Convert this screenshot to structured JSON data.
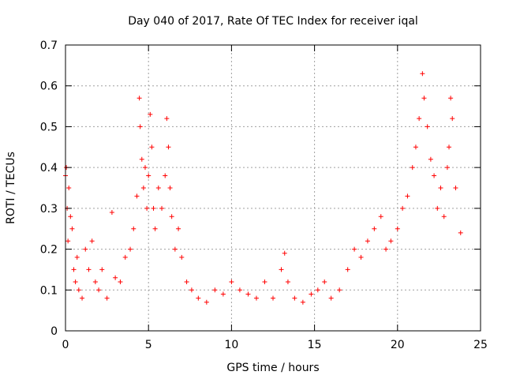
{
  "chart_data": {
    "type": "scatter",
    "title": "Day 040 of 2017, Rate Of TEC Index for receiver iqal",
    "xlabel": "GPS time / hours",
    "ylabel": "ROTI / TECUs",
    "xlim": [
      0,
      25
    ],
    "ylim": [
      0,
      0.7
    ],
    "xticks": [
      0,
      5,
      10,
      15,
      20,
      25
    ],
    "yticks": [
      0,
      0.1,
      0.2,
      0.3,
      0.4,
      0.5,
      0.6,
      0.7
    ],
    "xtick_labels": [
      "0",
      "5",
      "10",
      "15",
      "20",
      "25"
    ],
    "ytick_labels": [
      "0",
      "0.1",
      "0.2",
      "0.3",
      "0.4",
      "0.5",
      "0.6",
      "0.7"
    ],
    "grid": true,
    "marker": "+",
    "marker_color": "#ff0000",
    "series": [
      {
        "name": "ROTI",
        "x": [
          0.0,
          0.05,
          0.1,
          0.15,
          0.2,
          0.3,
          0.4,
          0.5,
          0.6,
          0.7,
          0.8,
          1.0,
          1.2,
          1.4,
          1.6,
          1.8,
          2.0,
          2.2,
          2.5,
          2.8,
          3.0,
          3.3,
          3.6,
          3.9,
          4.1,
          4.3,
          4.45,
          4.5,
          4.6,
          4.7,
          4.8,
          4.9,
          5.0,
          5.1,
          5.2,
          5.3,
          5.4,
          5.6,
          5.8,
          6.0,
          6.1,
          6.2,
          6.3,
          6.4,
          6.6,
          6.8,
          7.0,
          7.3,
          7.6,
          8.0,
          8.5,
          9.0,
          9.5,
          10.0,
          10.5,
          11.0,
          11.5,
          12.0,
          12.5,
          13.0,
          13.2,
          13.4,
          13.8,
          14.3,
          14.8,
          15.2,
          15.6,
          16.0,
          16.5,
          17.0,
          17.4,
          17.8,
          18.2,
          18.6,
          19.0,
          19.3,
          19.6,
          20.0,
          20.3,
          20.6,
          20.9,
          21.1,
          21.3,
          21.5,
          21.6,
          21.8,
          22.0,
          22.2,
          22.4,
          22.6,
          22.8,
          23.0,
          23.1,
          23.2,
          23.3,
          23.5,
          23.8
        ],
        "y": [
          0.38,
          0.4,
          0.3,
          0.22,
          0.35,
          0.28,
          0.25,
          0.15,
          0.12,
          0.18,
          0.1,
          0.08,
          0.2,
          0.15,
          0.22,
          0.12,
          0.1,
          0.15,
          0.08,
          0.29,
          0.13,
          0.12,
          0.18,
          0.2,
          0.25,
          0.33,
          0.57,
          0.5,
          0.42,
          0.35,
          0.4,
          0.3,
          0.38,
          0.53,
          0.45,
          0.3,
          0.25,
          0.35,
          0.3,
          0.38,
          0.52,
          0.45,
          0.35,
          0.28,
          0.2,
          0.25,
          0.18,
          0.12,
          0.1,
          0.08,
          0.07,
          0.1,
          0.09,
          0.12,
          0.1,
          0.09,
          0.08,
          0.12,
          0.08,
          0.15,
          0.19,
          0.12,
          0.08,
          0.07,
          0.09,
          0.1,
          0.12,
          0.08,
          0.1,
          0.15,
          0.2,
          0.18,
          0.22,
          0.25,
          0.28,
          0.2,
          0.22,
          0.25,
          0.3,
          0.33,
          0.4,
          0.45,
          0.52,
          0.63,
          0.57,
          0.5,
          0.42,
          0.38,
          0.3,
          0.35,
          0.28,
          0.4,
          0.45,
          0.57,
          0.52,
          0.35,
          0.24
        ]
      }
    ]
  }
}
